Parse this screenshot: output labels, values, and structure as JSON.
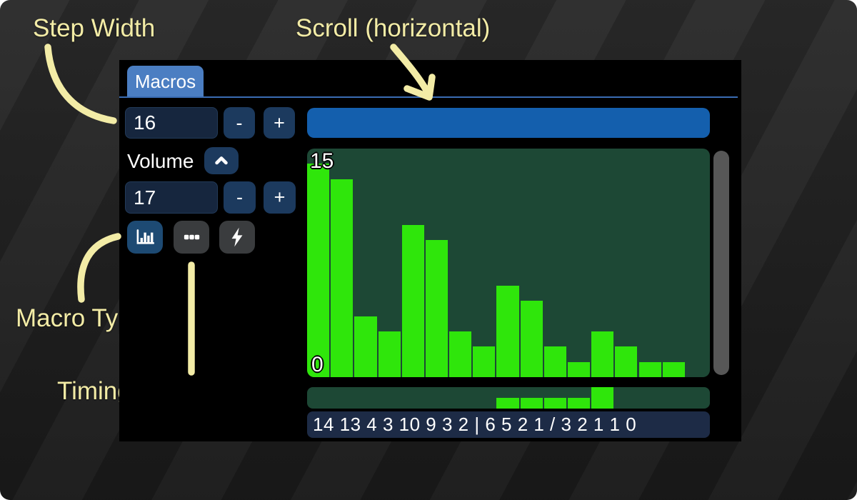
{
  "annotations": {
    "accent_color": "#f3eca6",
    "labels": {
      "step_width": "Step Width",
      "scroll_horizontal": "Scroll (horizontal)",
      "macro_type": "Macro Type",
      "timing_options": "Timing Options"
    }
  },
  "macro_editor": {
    "tab_label": "Macros",
    "step_width": {
      "value": "16",
      "minus": "-",
      "plus": "+"
    },
    "macro_row": {
      "name": "Volume",
      "collapse_icon": "chevron-up-icon",
      "length": {
        "value": "17",
        "minus": "-",
        "plus": "+"
      },
      "type_buttons": [
        {
          "icon": "bar-chart-icon",
          "selected": true
        },
        {
          "icon": "ellipsis-icon",
          "selected": false
        },
        {
          "icon": "lightning-bolt-icon",
          "selected": false
        }
      ],
      "values_text": "14 13 4 3 10 9 3 2 | 6 5 2 1 / 3 2 1 1 0"
    }
  },
  "chart_data": {
    "type": "bar",
    "title": "Volume",
    "steps": [
      0,
      1,
      2,
      3,
      4,
      5,
      6,
      7,
      8,
      9,
      10,
      11,
      12,
      13,
      14,
      15,
      16
    ],
    "values": [
      14,
      13,
      4,
      3,
      10,
      9,
      3,
      2,
      6,
      5,
      2,
      1,
      3,
      2,
      1,
      1,
      0
    ],
    "ylim": [
      0,
      15
    ],
    "y_max_label": "15",
    "y_min_label": "0",
    "loop_start_index": 8,
    "release_index": 12,
    "bar_color": "#2fe60b",
    "plot_bg": "#1d4835",
    "grid": false,
    "legend": false
  },
  "colors": {
    "panel_bg": "#000000",
    "tab_bg": "#4b7ec2",
    "tab_underline": "#3a6cb3",
    "field_bg": "#16263e",
    "button_bg": "#1c3a5e",
    "type_button_bg": "#3a3c3e",
    "type_button_selected_bg": "#1d4a73",
    "hscroll_bg": "#145fad",
    "vscroll_bg": "#575757",
    "values_row_bg": "#1d2b46"
  }
}
